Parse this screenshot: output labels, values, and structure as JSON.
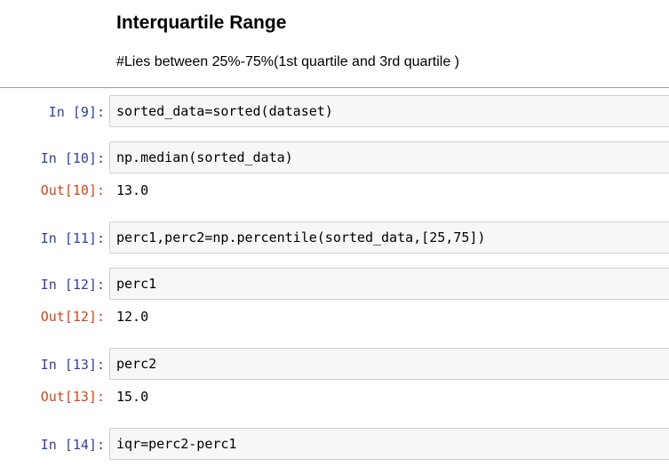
{
  "markdown": {
    "heading": "Interquartile Range",
    "text": "#Lies between 25%-75%(1st quartile and 3rd quartile )"
  },
  "cells": [
    {
      "in_prompt": "In [9]:",
      "code": "sorted_data=sorted(dataset)",
      "out_prompt": null,
      "output": null
    },
    {
      "in_prompt": "In [10]:",
      "code": "np.median(sorted_data)",
      "out_prompt": "Out[10]:",
      "output": "13.0"
    },
    {
      "in_prompt": "In [11]:",
      "code": "perc1,perc2=np.percentile(sorted_data,[25,75])",
      "out_prompt": null,
      "output": null
    },
    {
      "in_prompt": "In [12]:",
      "code": "perc1",
      "out_prompt": "Out[12]:",
      "output": "12.0"
    },
    {
      "in_prompt": "In [13]:",
      "code": "perc2",
      "out_prompt": "Out[13]:",
      "output": "15.0"
    },
    {
      "in_prompt": "In [14]:",
      "code": "iqr=perc2-perc1",
      "out_prompt": null,
      "output": null
    }
  ],
  "colors": {
    "in_prompt": "#303f9f",
    "out_prompt": "#d84315",
    "input_bg": "#f7f7f7",
    "input_border": "#cfcfcf"
  }
}
